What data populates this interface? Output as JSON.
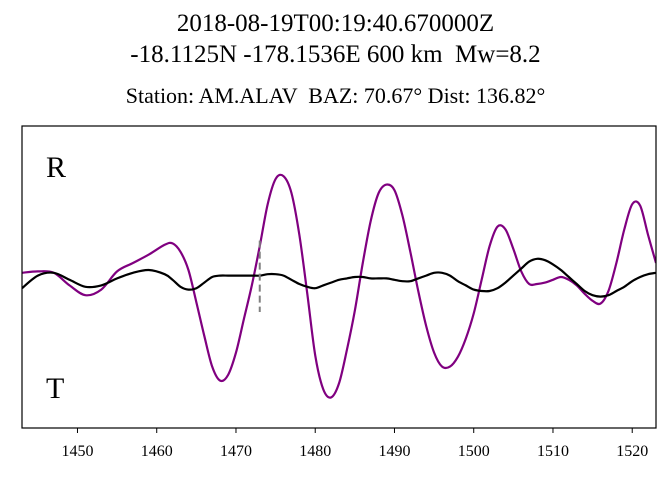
{
  "header": {
    "line1": "2018-08-19T00:19:40.670000Z",
    "line2": "-18.1125N -178.1536E 600 km  Mw=8.2",
    "line3": "Station: AM.ALAV  BAZ: 70.67° Dist: 136.82°"
  },
  "chart_data": {
    "type": "line",
    "xlim": [
      1443,
      1523
    ],
    "ylim": [
      -1,
      1
    ],
    "grid": false,
    "x_ticks": [
      1450,
      1460,
      1470,
      1480,
      1490,
      1500,
      1510,
      1520
    ],
    "x_tick_labels": [
      "1450",
      "1460",
      "1470",
      "1480",
      "1490",
      "1500",
      "1510",
      "1520"
    ],
    "labels": {
      "top": "R",
      "bottom": "T"
    },
    "marker": {
      "x": 1473,
      "y_range": [
        -0.25,
        0.26
      ],
      "style": "dashed",
      "color": "#808080"
    },
    "series": [
      {
        "id": "R",
        "color": "#800080",
        "x": [
          1443,
          1445,
          1447,
          1449,
          1451,
          1453,
          1455,
          1457,
          1459,
          1461,
          1462,
          1463,
          1464,
          1465,
          1466,
          1467,
          1468,
          1469,
          1470,
          1471,
          1472,
          1473,
          1474,
          1475,
          1476,
          1477,
          1478,
          1479,
          1480,
          1481,
          1482,
          1483,
          1484,
          1485,
          1486,
          1487,
          1488,
          1489,
          1490,
          1491,
          1492,
          1493,
          1494,
          1495,
          1496,
          1497,
          1498,
          1499,
          1500,
          1501,
          1502,
          1503,
          1504,
          1505,
          1506,
          1507,
          1508,
          1509,
          1510,
          1511,
          1512,
          1513,
          1514,
          1515,
          1516,
          1517,
          1518,
          1519,
          1520,
          1521,
          1522,
          1523
        ],
        "y": [
          0.03,
          0.04,
          0.03,
          -0.06,
          -0.13,
          -0.09,
          0.04,
          0.1,
          0.16,
          0.23,
          0.24,
          0.18,
          0.05,
          -0.18,
          -0.42,
          -0.64,
          -0.74,
          -0.7,
          -0.54,
          -0.3,
          -0.06,
          0.22,
          0.52,
          0.7,
          0.72,
          0.6,
          0.3,
          -0.12,
          -0.56,
          -0.8,
          -0.86,
          -0.76,
          -0.52,
          -0.24,
          0.1,
          0.4,
          0.6,
          0.66,
          0.62,
          0.44,
          0.18,
          -0.1,
          -0.35,
          -0.54,
          -0.64,
          -0.64,
          -0.57,
          -0.44,
          -0.26,
          -0.02,
          0.22,
          0.36,
          0.34,
          0.2,
          0.04,
          -0.05,
          -0.05,
          -0.04,
          -0.02,
          0.0,
          -0.02,
          -0.06,
          -0.12,
          -0.17,
          -0.19,
          -0.1,
          0.1,
          0.34,
          0.52,
          0.51,
          0.3,
          0.1
        ]
      },
      {
        "id": "T",
        "color": "#000000",
        "x": [
          1443,
          1445,
          1447,
          1449,
          1451,
          1453,
          1455,
          1457,
          1459,
          1461,
          1462,
          1463,
          1464,
          1465,
          1466,
          1467,
          1468,
          1469,
          1470,
          1471,
          1472,
          1473,
          1474,
          1475,
          1476,
          1477,
          1478,
          1479,
          1480,
          1481,
          1482,
          1483,
          1484,
          1485,
          1486,
          1487,
          1488,
          1489,
          1490,
          1491,
          1492,
          1493,
          1494,
          1495,
          1496,
          1497,
          1498,
          1499,
          1500,
          1501,
          1502,
          1503,
          1504,
          1505,
          1506,
          1507,
          1508,
          1509,
          1510,
          1511,
          1512,
          1513,
          1514,
          1515,
          1516,
          1517,
          1518,
          1519,
          1520,
          1521,
          1522,
          1523
        ],
        "y": [
          -0.08,
          0.01,
          0.03,
          -0.02,
          -0.07,
          -0.06,
          -0.01,
          0.03,
          0.05,
          0.02,
          -0.02,
          -0.07,
          -0.09,
          -0.08,
          -0.04,
          0.0,
          0.01,
          0.01,
          0.01,
          0.01,
          0.01,
          0.01,
          0.02,
          0.02,
          0.01,
          -0.02,
          -0.05,
          -0.07,
          -0.08,
          -0.06,
          -0.04,
          -0.02,
          -0.01,
          -0.0,
          0.0,
          -0.01,
          -0.01,
          -0.01,
          -0.02,
          -0.03,
          -0.03,
          -0.01,
          0.01,
          0.03,
          0.03,
          0.01,
          -0.03,
          -0.06,
          -0.09,
          -0.1,
          -0.1,
          -0.08,
          -0.04,
          0.01,
          0.06,
          0.11,
          0.13,
          0.12,
          0.09,
          0.05,
          0.0,
          -0.05,
          -0.1,
          -0.13,
          -0.14,
          -0.13,
          -0.1,
          -0.07,
          -0.03,
          0.0,
          0.02,
          0.03
        ]
      }
    ]
  }
}
